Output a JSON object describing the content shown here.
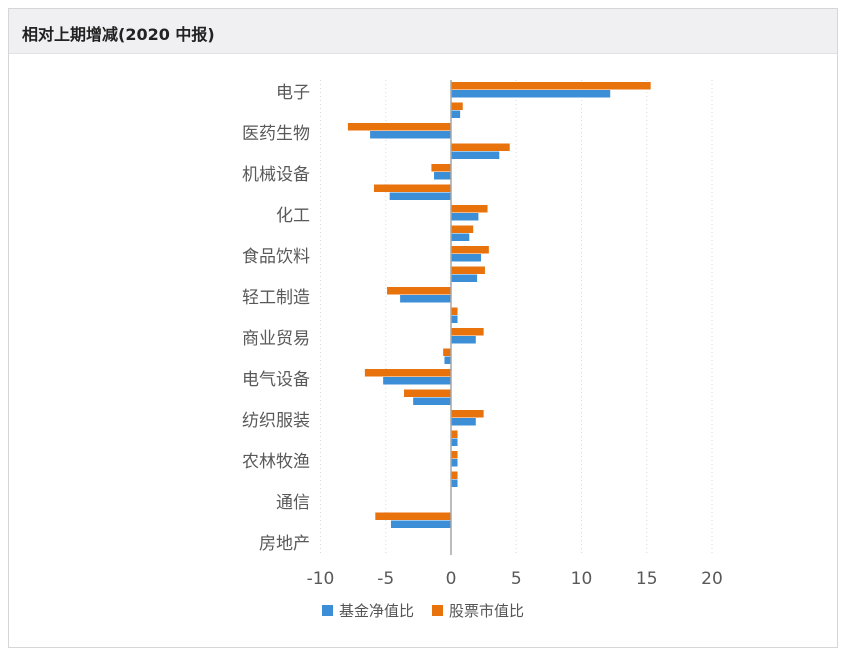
{
  "header": {
    "title": "相对上期增减(2020 中报)"
  },
  "chart_data": {
    "type": "bar",
    "orientation": "horizontal",
    "title": "相对上期增减(2020 中报)",
    "xlabel": "",
    "ylabel": "",
    "xlim": [
      -10,
      20
    ],
    "xticks": [
      -10,
      -5,
      0,
      5,
      10,
      15,
      20
    ],
    "labeled_categories": [
      "电子",
      "医药生物",
      "机械设备",
      "化工",
      "食品饮料",
      "轻工制造",
      "商业贸易",
      "电气设备",
      "纺织服装",
      "农林牧渔",
      "通信",
      "房地产"
    ],
    "legend_position": "bottom",
    "grid": "vertical-dotted",
    "series": [
      {
        "name": "基金净值比",
        "color": "#3c8fd6",
        "values": [
          12.2,
          0.7,
          -6.2,
          3.7,
          -1.3,
          -4.7,
          2.1,
          1.4,
          2.3,
          2.0,
          -3.9,
          0.5,
          1.9,
          -0.5,
          -5.2,
          -2.9,
          1.9,
          0.5,
          0.5,
          0.5,
          0.0,
          -4.6
        ]
      },
      {
        "name": "股票市值比",
        "color": "#e8720c",
        "values": [
          15.3,
          0.9,
          -7.9,
          4.5,
          -1.5,
          -5.9,
          2.8,
          1.7,
          2.9,
          2.6,
          -4.9,
          0.5,
          2.5,
          -0.6,
          -6.6,
          -3.6,
          2.5,
          0.5,
          0.5,
          0.5,
          0.0,
          -5.8
        ]
      }
    ]
  },
  "legend": {
    "items": [
      {
        "label": "基金净值比",
        "color": "#3c8fd6"
      },
      {
        "label": "股票市值比",
        "color": "#e8720c"
      }
    ]
  }
}
